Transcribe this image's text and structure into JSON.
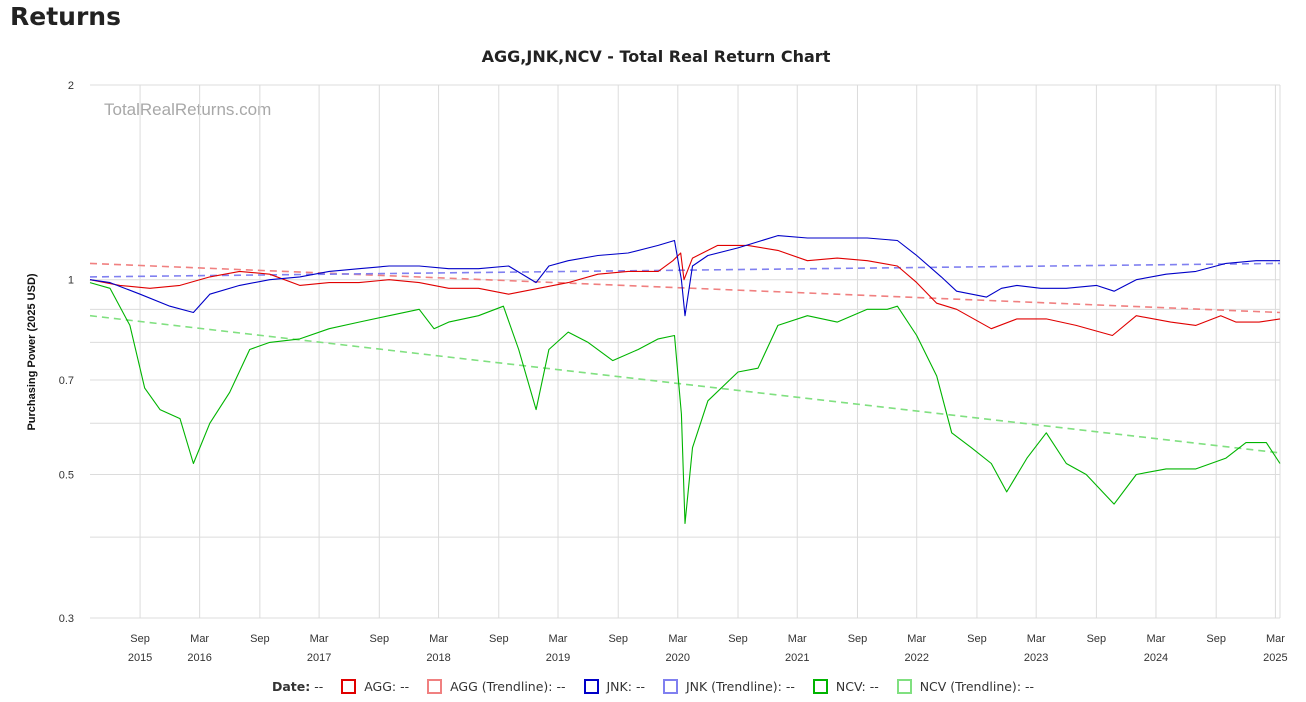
{
  "page": {
    "heading": "Returns"
  },
  "legend": {
    "date_label": "Date:",
    "placeholder": "--",
    "items": [
      {
        "label": "AGG:",
        "color": "#e00000"
      },
      {
        "label": "AGG (Trendline):",
        "color": "#f08080"
      },
      {
        "label": "JNK:",
        "color": "#0000c8"
      },
      {
        "label": "JNK (Trendline):",
        "color": "#8080f0"
      },
      {
        "label": "NCV:",
        "color": "#00b400"
      },
      {
        "label": "NCV (Trendline):",
        "color": "#80e080"
      }
    ]
  },
  "chart_data": {
    "type": "line",
    "title": "AGG,JNK,NCV - Total Real Return Chart",
    "ylabel": "Purchasing Power (2025 USD)",
    "xlabel": "",
    "watermark": "TotalRealReturns.com",
    "y_scale": "log",
    "ylim": [
      0.3,
      2
    ],
    "y_ticks": [
      0.3,
      0.5,
      0.7,
      1,
      2
    ],
    "y_gridlines": [
      0.3,
      0.4,
      0.5,
      0.6,
      0.7,
      0.8,
      0.9,
      1,
      2
    ],
    "xlim": [
      "2015-04-01",
      "2025-03-15"
    ],
    "x_ticks": [
      {
        "date": "2015-09-01",
        "label": "Sep",
        "year": "2015"
      },
      {
        "date": "2016-03-01",
        "label": "Mar",
        "year": "2016"
      },
      {
        "date": "2016-09-01",
        "label": "Sep",
        "year": ""
      },
      {
        "date": "2017-03-01",
        "label": "Mar",
        "year": "2017"
      },
      {
        "date": "2017-09-01",
        "label": "Sep",
        "year": ""
      },
      {
        "date": "2018-03-01",
        "label": "Mar",
        "year": "2018"
      },
      {
        "date": "2018-09-01",
        "label": "Sep",
        "year": ""
      },
      {
        "date": "2019-03-01",
        "label": "Mar",
        "year": "2019"
      },
      {
        "date": "2019-09-01",
        "label": "Sep",
        "year": ""
      },
      {
        "date": "2020-03-01",
        "label": "Mar",
        "year": "2020"
      },
      {
        "date": "2020-09-01",
        "label": "Sep",
        "year": ""
      },
      {
        "date": "2021-03-01",
        "label": "Mar",
        "year": "2021"
      },
      {
        "date": "2021-09-01",
        "label": "Sep",
        "year": ""
      },
      {
        "date": "2022-03-01",
        "label": "Mar",
        "year": "2022"
      },
      {
        "date": "2022-09-01",
        "label": "Sep",
        "year": ""
      },
      {
        "date": "2023-03-01",
        "label": "Mar",
        "year": "2023"
      },
      {
        "date": "2023-09-01",
        "label": "Sep",
        "year": ""
      },
      {
        "date": "2024-03-01",
        "label": "Mar",
        "year": "2024"
      },
      {
        "date": "2024-09-01",
        "label": "Sep",
        "year": ""
      },
      {
        "date": "2025-03-01",
        "label": "Mar",
        "year": "2025"
      }
    ],
    "grid": true,
    "legend_position": "bottom",
    "series": [
      {
        "name": "AGG",
        "color": "#e00000",
        "dashed": false,
        "x": [
          "2015-04-01",
          "2015-07-01",
          "2015-10-01",
          "2016-01-01",
          "2016-04-01",
          "2016-07-01",
          "2016-10-01",
          "2017-01-01",
          "2017-04-01",
          "2017-07-01",
          "2017-10-01",
          "2018-01-01",
          "2018-04-01",
          "2018-07-01",
          "2018-10-01",
          "2019-01-01",
          "2019-04-01",
          "2019-07-01",
          "2019-10-01",
          "2020-01-01",
          "2020-02-15",
          "2020-03-10",
          "2020-03-20",
          "2020-04-15",
          "2020-07-01",
          "2020-10-01",
          "2021-01-01",
          "2021-04-01",
          "2021-07-01",
          "2021-10-01",
          "2022-01-01",
          "2022-03-01",
          "2022-05-01",
          "2022-07-01",
          "2022-10-15",
          "2023-01-01",
          "2023-04-01",
          "2023-07-01",
          "2023-10-20",
          "2024-01-01",
          "2024-04-15",
          "2024-07-01",
          "2024-09-15",
          "2024-11-01",
          "2025-01-10",
          "2025-03-15"
        ],
        "y": [
          1.0,
          0.98,
          0.97,
          0.98,
          1.01,
          1.03,
          1.02,
          0.98,
          0.99,
          0.99,
          1.0,
          0.99,
          0.97,
          0.97,
          0.95,
          0.97,
          0.99,
          1.02,
          1.03,
          1.03,
          1.07,
          1.1,
          1.0,
          1.08,
          1.13,
          1.13,
          1.11,
          1.07,
          1.08,
          1.07,
          1.05,
          0.99,
          0.92,
          0.9,
          0.84,
          0.87,
          0.87,
          0.85,
          0.82,
          0.88,
          0.86,
          0.85,
          0.88,
          0.86,
          0.86,
          0.87
        ]
      },
      {
        "name": "AGG (Trendline)",
        "color": "#f08080",
        "dashed": true,
        "x": [
          "2015-04-01",
          "2025-03-15"
        ],
        "y": [
          1.06,
          0.89
        ]
      },
      {
        "name": "JNK",
        "color": "#0000c8",
        "dashed": false,
        "x": [
          "2015-04-01",
          "2015-06-01",
          "2015-09-01",
          "2015-12-01",
          "2016-02-11",
          "2016-04-01",
          "2016-07-01",
          "2016-10-01",
          "2017-01-01",
          "2017-04-01",
          "2017-07-01",
          "2017-10-01",
          "2018-01-01",
          "2018-04-01",
          "2018-07-01",
          "2018-10-01",
          "2018-12-24",
          "2019-02-01",
          "2019-04-01",
          "2019-07-01",
          "2019-10-01",
          "2020-01-01",
          "2020-02-20",
          "2020-03-12",
          "2020-03-23",
          "2020-04-15",
          "2020-06-01",
          "2020-09-01",
          "2021-01-01",
          "2021-04-01",
          "2021-07-01",
          "2021-10-01",
          "2022-01-01",
          "2022-03-01",
          "2022-05-15",
          "2022-07-01",
          "2022-09-30",
          "2022-11-15",
          "2023-01-01",
          "2023-03-15",
          "2023-06-01",
          "2023-09-01",
          "2023-10-25",
          "2024-01-01",
          "2024-04-01",
          "2024-07-01",
          "2024-10-01",
          "2025-01-01",
          "2025-03-15"
        ],
        "y": [
          1.0,
          0.99,
          0.95,
          0.91,
          0.89,
          0.95,
          0.98,
          1.0,
          1.01,
          1.03,
          1.04,
          1.05,
          1.05,
          1.04,
          1.04,
          1.05,
          0.99,
          1.05,
          1.07,
          1.09,
          1.1,
          1.13,
          1.15,
          1.0,
          0.88,
          1.05,
          1.09,
          1.12,
          1.17,
          1.16,
          1.16,
          1.16,
          1.15,
          1.09,
          1.01,
          0.96,
          0.94,
          0.97,
          0.98,
          0.97,
          0.97,
          0.98,
          0.96,
          1.0,
          1.02,
          1.03,
          1.06,
          1.07,
          1.07
        ]
      },
      {
        "name": "JNK (Trendline)",
        "color": "#8080f0",
        "dashed": true,
        "x": [
          "2015-04-01",
          "2025-03-15"
        ],
        "y": [
          1.01,
          1.06
        ]
      },
      {
        "name": "NCV",
        "color": "#00b400",
        "dashed": false,
        "x": [
          "2015-04-01",
          "2015-06-01",
          "2015-08-01",
          "2015-09-15",
          "2015-11-01",
          "2016-01-01",
          "2016-02-11",
          "2016-04-01",
          "2016-06-01",
          "2016-08-01",
          "2016-10-01",
          "2017-01-01",
          "2017-04-01",
          "2017-07-01",
          "2017-10-01",
          "2018-01-01",
          "2018-02-15",
          "2018-04-01",
          "2018-07-01",
          "2018-09-15",
          "2018-11-01",
          "2018-12-24",
          "2019-02-01",
          "2019-04-01",
          "2019-06-01",
          "2019-08-15",
          "2019-11-01",
          "2020-01-01",
          "2020-02-20",
          "2020-03-12",
          "2020-03-23",
          "2020-04-15",
          "2020-06-01",
          "2020-09-01",
          "2020-11-01",
          "2021-01-01",
          "2021-04-01",
          "2021-07-01",
          "2021-10-01",
          "2021-12-01",
          "2022-01-01",
          "2022-03-01",
          "2022-05-01",
          "2022-06-16",
          "2022-08-15",
          "2022-10-15",
          "2022-12-01",
          "2023-02-01",
          "2023-04-01",
          "2023-06-01",
          "2023-08-01",
          "2023-10-25",
          "2024-01-01",
          "2024-04-01",
          "2024-07-01",
          "2024-10-01",
          "2024-12-01",
          "2025-02-01",
          "2025-03-15"
        ],
        "y": [
          0.99,
          0.97,
          0.85,
          0.68,
          0.63,
          0.61,
          0.52,
          0.6,
          0.67,
          0.78,
          0.8,
          0.81,
          0.84,
          0.86,
          0.88,
          0.9,
          0.84,
          0.86,
          0.88,
          0.91,
          0.78,
          0.63,
          0.78,
          0.83,
          0.8,
          0.75,
          0.78,
          0.81,
          0.82,
          0.62,
          0.42,
          0.55,
          0.65,
          0.72,
          0.73,
          0.85,
          0.88,
          0.86,
          0.9,
          0.9,
          0.91,
          0.82,
          0.71,
          0.58,
          0.55,
          0.52,
          0.47,
          0.53,
          0.58,
          0.52,
          0.5,
          0.45,
          0.5,
          0.51,
          0.51,
          0.53,
          0.56,
          0.56,
          0.52
        ]
      },
      {
        "name": "NCV (Trendline)",
        "color": "#80e080",
        "dashed": true,
        "x": [
          "2015-04-01",
          "2025-03-15"
        ],
        "y": [
          0.88,
          0.54
        ]
      }
    ]
  }
}
